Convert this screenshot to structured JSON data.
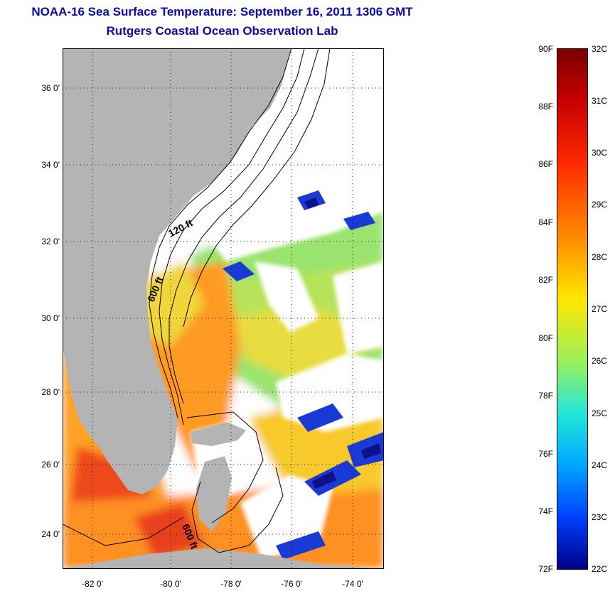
{
  "title_line1": "NOAA-16 Sea Surface Temperature:  September 16, 2011 1306 GMT",
  "title_line2": "Rutgers Coastal Ocean Observation Lab",
  "map": {
    "lat_labels": [
      "36 0'",
      "34 0'",
      "32 0'",
      "30 0'",
      "28 0'",
      "26 0'",
      "24 0'"
    ],
    "lon_labels": [
      "-82 0'",
      "-80 0'",
      "-78 0'",
      "-76 0'",
      "-74 0'"
    ],
    "contour_labels": [
      "120 ft",
      "600 ft",
      "600 ft"
    ],
    "colors": {
      "land": "#b4b4b4",
      "cloud": "#ffffff",
      "warm": "#ff8c1a",
      "hot": "#e8421a",
      "mild": "#f5d31e",
      "cool": "#8ee06a",
      "cold": "#1a3ad6",
      "deep_cold": "#10108a"
    }
  },
  "colorbar": {
    "fahrenheit": [
      "90F",
      "88F",
      "86F",
      "84F",
      "82F",
      "80F",
      "78F",
      "76F",
      "74F",
      "72F"
    ],
    "celsius": [
      "32C",
      "31C",
      "30C",
      "29C",
      "28C",
      "27C",
      "26C",
      "25C",
      "24C",
      "23C",
      "22C"
    ],
    "range_celsius": [
      22,
      32
    ],
    "range_fahrenheit": [
      72,
      90
    ]
  }
}
